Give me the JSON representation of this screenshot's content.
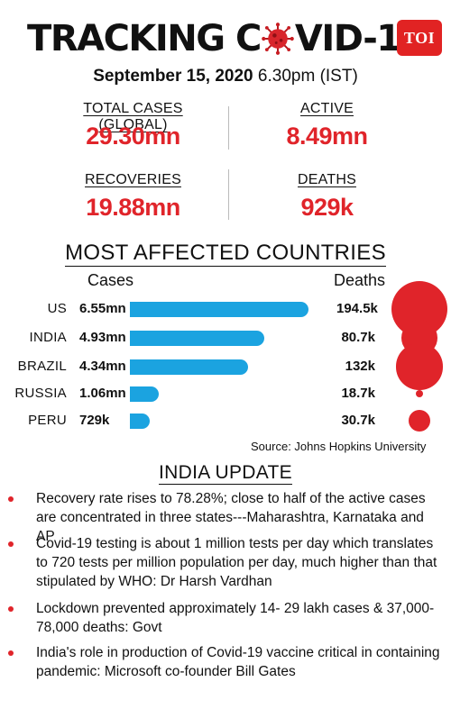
{
  "header": {
    "title_left": "TRACKING C",
    "title_right": "VID-19",
    "logo": "TOI",
    "date": "September 15, 2020",
    "time": "6.30pm (IST)"
  },
  "stats": {
    "total_cases_label": "TOTAL CASES (GLOBAL)",
    "total_cases_value": "29.30mn",
    "active_label": "ACTIVE",
    "active_value": "8.49mn",
    "recoveries_label": "RECOVERIES",
    "recoveries_value": "19.88mn",
    "deaths_label": "DEATHS",
    "deaths_value": "929k"
  },
  "colors": {
    "accent_red": "#e0242a",
    "bar_blue": "#1ba3e0"
  },
  "chart_data": {
    "type": "bar",
    "title": "MOST AFFECTED COUNTRIES",
    "cases_header": "Cases",
    "deaths_header": "Deaths",
    "categories": [
      "US",
      "INDIA",
      "BRAZIL",
      "RUSSIA",
      "PERU"
    ],
    "series": [
      {
        "name": "Cases",
        "values": [
          6.55,
          4.93,
          4.34,
          1.06,
          0.729
        ],
        "labels": [
          "6.55mn",
          "4.93mn",
          "4.34mn",
          "1.06mn",
          "729k"
        ]
      },
      {
        "name": "Deaths",
        "values": [
          194.5,
          80.7,
          132,
          18.7,
          30.7
        ],
        "labels": [
          "194.5k",
          "80.7k",
          "132k",
          "18.7k",
          "30.7k"
        ]
      }
    ],
    "source": "Source: Johns Hopkins University"
  },
  "india_update": {
    "heading": "INDIA UPDATE",
    "bullets": [
      "Recovery rate rises to 78.28%; close to half of the active cases are concentrated in three states---Maharashtra, Karnataka and AP",
      "Covid-19 testing is about 1 million tests per day which translates to 720 tests per million population per day, much higher than that stipulated by WHO: Dr Harsh Vardhan",
      "Lockdown prevented approximately 14- 29 lakh cases & 37,000-78,000 deaths: Govt",
      "India's role in production of Covid-19 vaccine critical in containing pandemic: Microsoft co-founder Bill Gates"
    ]
  }
}
